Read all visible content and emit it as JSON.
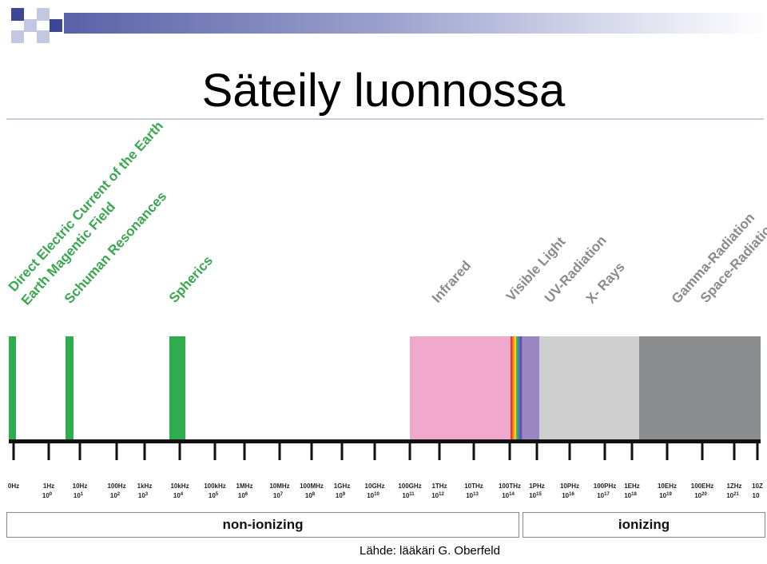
{
  "title": "Säteily luonnossa",
  "band_labels": [
    {
      "text": "Direct Electric Current of the Earth",
      "color": "green"
    },
    {
      "text": "Earth Magentic Field",
      "color": "green"
    },
    {
      "text": "Schuman Resonances",
      "color": "green"
    },
    {
      "text": "Spherics",
      "color": "green"
    },
    {
      "text": "Infrared",
      "color": "grey"
    },
    {
      "text": "Visible Light",
      "color": "grey"
    },
    {
      "text": "UV-Radiation",
      "color": "grey"
    },
    {
      "text": "X- Rays",
      "color": "grey"
    },
    {
      "text": "Gamma-Radiation",
      "color": "grey"
    },
    {
      "text": "Space-Radiation",
      "color": "grey"
    }
  ],
  "ticks": [
    {
      "freq": "0Hz",
      "exp": ""
    },
    {
      "freq": "1Hz",
      "exp": "10^0"
    },
    {
      "freq": "10Hz",
      "exp": "10^1"
    },
    {
      "freq": "100Hz",
      "exp": "10^2"
    },
    {
      "freq": "1kHz",
      "exp": "10^3"
    },
    {
      "freq": "10kHz",
      "exp": "10^4"
    },
    {
      "freq": "100kHz",
      "exp": "10^5"
    },
    {
      "freq": "1MHz",
      "exp": "10^6"
    },
    {
      "freq": "10MHz",
      "exp": "10^7"
    },
    {
      "freq": "100MHz",
      "exp": "10^8"
    },
    {
      "freq": "1GHz",
      "exp": "10^9"
    },
    {
      "freq": "10GHz",
      "exp": "10^10"
    },
    {
      "freq": "100GHz",
      "exp": "10^11"
    },
    {
      "freq": "1THz",
      "exp": "10^12"
    },
    {
      "freq": "10THz",
      "exp": "10^13"
    },
    {
      "freq": "100THz",
      "exp": "10^14"
    },
    {
      "freq": "1PHz",
      "exp": "10^15"
    },
    {
      "freq": "10PHz",
      "exp": "10^16"
    },
    {
      "freq": "100PHz",
      "exp": "10^17"
    },
    {
      "freq": "1EHz",
      "exp": "10^18"
    },
    {
      "freq": "10EHz",
      "exp": "10^19"
    },
    {
      "freq": "100EHz",
      "exp": "10^20"
    },
    {
      "freq": "1ZHz",
      "exp": "10^21"
    },
    {
      "freq": "10Z",
      "exp": "10"
    }
  ],
  "categories": {
    "non_ionizing": "non-ionizing",
    "ionizing": "ionizing"
  },
  "source": "Lähde: lääkäri G. Oberfeld",
  "colors": {
    "green": "#2fad4e",
    "infrared": "#f0a8cd",
    "uv": "#9b86c3",
    "xray": "#cfcfcf",
    "gamma": "#8c8d8e",
    "axis": "#111111"
  }
}
